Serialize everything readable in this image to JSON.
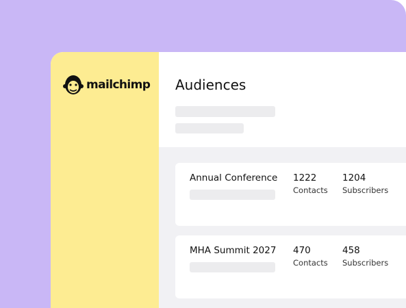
{
  "logo": "mailchimp",
  "header": {
    "title": "Audiences"
  },
  "audiences": [
    {
      "name": "Annual Conference",
      "contacts": 1222,
      "contacts_label": "Contacts",
      "subscribers": 1204,
      "subscribers_label": "Subscribers"
    },
    {
      "name": "MHA Summit 2027",
      "contacts": 470,
      "contacts_label": "Contacts",
      "subscribers": 458,
      "subscribers_label": "Subscribers"
    }
  ]
}
